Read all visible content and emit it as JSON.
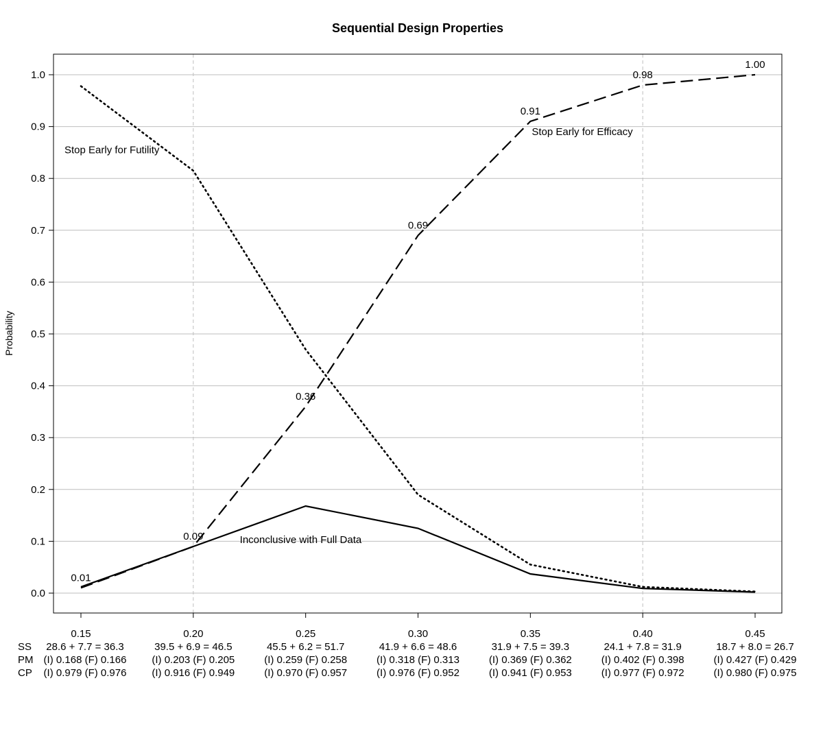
{
  "chart_data": {
    "type": "line",
    "title": "Sequential Design Properties",
    "ylabel": "Probability",
    "xlabel": "",
    "x": [
      0.15,
      0.2,
      0.25,
      0.3,
      0.35,
      0.4,
      0.45
    ],
    "x_tick_labels": [
      "0.15",
      "0.20",
      "0.25",
      "0.30",
      "0.35",
      "0.40",
      "0.45"
    ],
    "xlim": [
      0.15,
      0.45
    ],
    "ylim": [
      0,
      1.0
    ],
    "y_ticks": [
      0.0,
      0.1,
      0.2,
      0.3,
      0.4,
      0.5,
      0.6,
      0.7,
      0.8,
      0.9,
      1.0
    ],
    "y_tick_labels": [
      "0.0",
      "0.1",
      "0.2",
      "0.3",
      "0.4",
      "0.5",
      "0.6",
      "0.7",
      "0.8",
      "0.9",
      "1.0"
    ],
    "grid": "horizontal",
    "vertical_reference_lines": [
      0.2,
      0.4
    ],
    "series": [
      {
        "style": "dashed",
        "values": [
          0.01,
          0.09,
          0.36,
          0.69,
          0.91,
          0.98,
          1.0
        ],
        "point_labels": [
          "0.01",
          "0.09",
          "0.36",
          "0.69",
          "0.91",
          "0.98",
          "1.00"
        ]
      },
      {
        "style": "dotted",
        "values": [
          0.978,
          0.815,
          0.47,
          0.19,
          0.055,
          0.012,
          0.003
        ]
      },
      {
        "style": "solid",
        "values": [
          0.012,
          0.09,
          0.168,
          0.125,
          0.037,
          0.009,
          0.002
        ]
      }
    ],
    "annotations": [
      {
        "text": "Stop Early for Futility",
        "x": 0.15,
        "y": 0.855
      },
      {
        "text": "Stop Early for Efficacy",
        "x": 0.35,
        "y": 0.89
      },
      {
        "text": "Inconclusive with Full Data",
        "x": 0.25,
        "y": 0.103
      }
    ],
    "row_labels": [
      "SS",
      "PM",
      "CP"
    ],
    "table": [
      {
        "ss": "28.6 + 7.7 = 36.3",
        "pm": "(I) 0.168 (F) 0.166",
        "cp": "(I) 0.979 (F) 0.976"
      },
      {
        "ss": "39.5 + 6.9 = 46.5",
        "pm": "(I) 0.203 (F) 0.205",
        "cp": "(I) 0.916 (F) 0.949"
      },
      {
        "ss": "45.5 + 6.2 = 51.7",
        "pm": "(I) 0.259 (F) 0.258",
        "cp": "(I) 0.970 (F) 0.957"
      },
      {
        "ss": "41.9 + 6.6 = 48.6",
        "pm": "(I) 0.318 (F) 0.313",
        "cp": "(I) 0.976 (F) 0.952"
      },
      {
        "ss": "31.9 + 7.5 = 39.3",
        "pm": "(I) 0.369 (F) 0.362",
        "cp": "(I) 0.941 (F) 0.953"
      },
      {
        "ss": "24.1 + 7.8 = 31.9",
        "pm": "(I) 0.402 (F) 0.398",
        "cp": "(I) 0.977 (F) 0.972"
      },
      {
        "ss": "18.7 + 8.0 = 26.7",
        "pm": "(I) 0.427 (F) 0.429",
        "cp": "(I) 0.980 (F) 0.975"
      }
    ]
  }
}
